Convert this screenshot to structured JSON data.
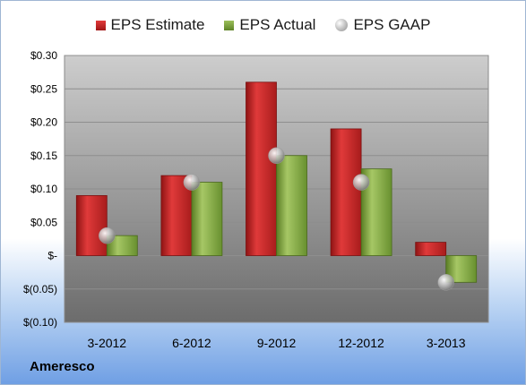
{
  "legend": {
    "estimate_label": "EPS Estimate",
    "actual_label": "EPS Actual",
    "gaap_label": "EPS GAAP"
  },
  "company": "Ameresco",
  "colors": {
    "estimate": "#c0282b",
    "actual": "#7ba03c",
    "gaap": "#b8b8b8",
    "plot_top": "#cdcdcd",
    "plot_bottom": "#6c6c6c"
  },
  "chart_data": {
    "type": "bar",
    "title": "",
    "xlabel": "",
    "ylabel": "",
    "categories": [
      "3-2012",
      "6-2012",
      "9-2012",
      "12-2012",
      "3-2013"
    ],
    "series": [
      {
        "name": "EPS Estimate",
        "type": "bar",
        "values": [
          0.09,
          0.12,
          0.26,
          0.19,
          0.02
        ]
      },
      {
        "name": "EPS Actual",
        "type": "bar",
        "values": [
          0.03,
          0.11,
          0.15,
          0.13,
          -0.04
        ]
      },
      {
        "name": "EPS GAAP",
        "type": "marker",
        "values": [
          0.03,
          0.11,
          0.15,
          0.11,
          -0.04
        ]
      }
    ],
    "ylim": [
      -0.1,
      0.3
    ],
    "yticks": [
      0.3,
      0.25,
      0.2,
      0.15,
      0.1,
      0.05,
      0,
      -0.05,
      -0.1
    ],
    "ytick_labels": [
      "$0.30",
      "$0.25",
      "$0.20",
      "$0.15",
      "$0.10",
      "$0.05",
      "$-",
      "$(0.05)",
      "$(0.10)"
    ],
    "grid": true,
    "legend_position": "top"
  }
}
